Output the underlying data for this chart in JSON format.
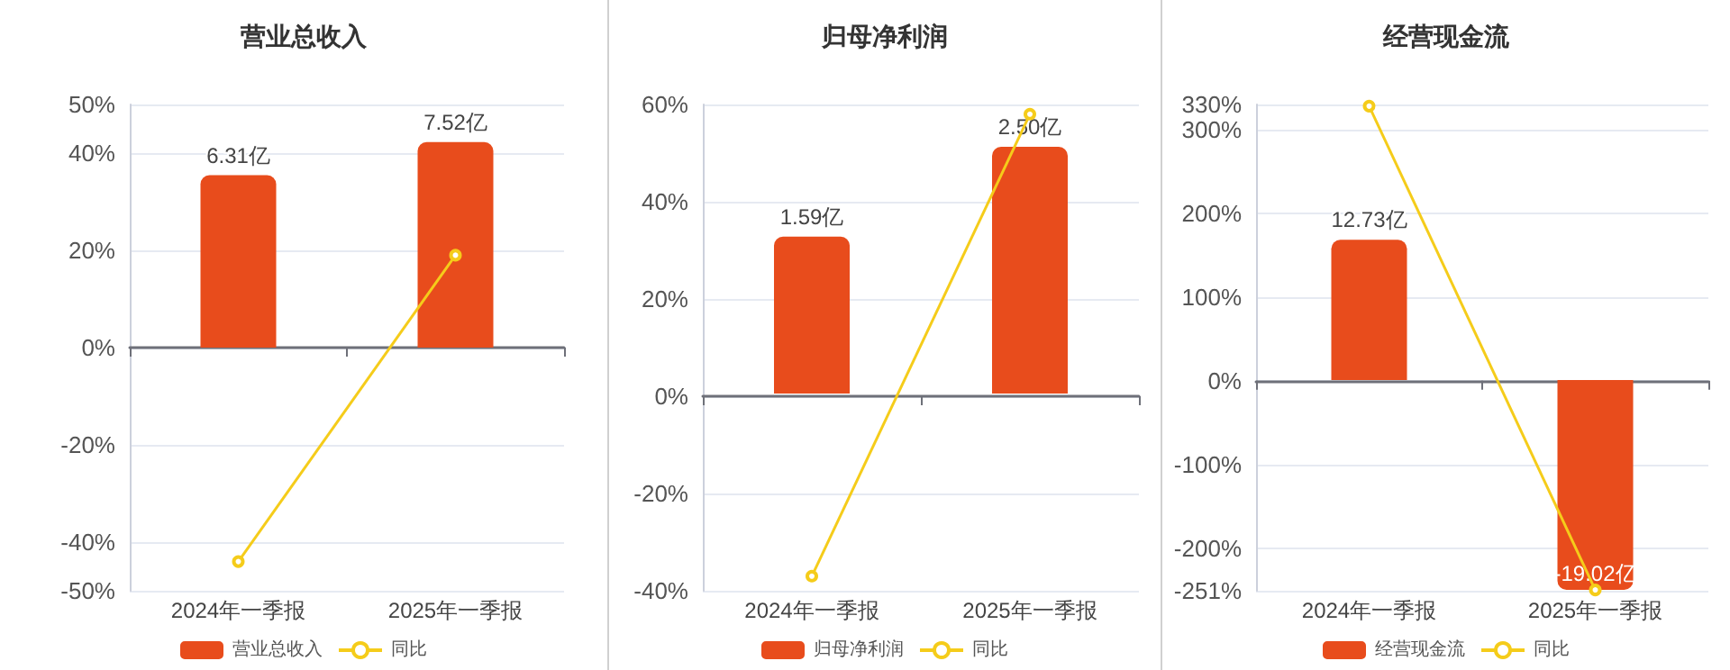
{
  "chart_data": [
    {
      "type": "bar",
      "title": "营业总收入",
      "categories": [
        "2024年一季报",
        "2025年一季报"
      ],
      "series": [
        {
          "name": "营业总收入",
          "axis": "y2",
          "color": "#e84c1c",
          "values": [
            6.31,
            7.52
          ],
          "value_labels": [
            "6.31亿",
            "7.52亿"
          ]
        },
        {
          "name": "同比",
          "type": "line",
          "axis": "y",
          "color": "#f5cc1a",
          "values": [
            -44,
            19
          ]
        }
      ],
      "ylim": [
        -50,
        50
      ],
      "yticks": [
        {
          "value": -50,
          "label": "-50%"
        },
        {
          "value": -40,
          "label": "-40%"
        },
        {
          "value": -20,
          "label": "-20%"
        },
        {
          "value": 0,
          "label": "0%"
        },
        {
          "value": 20,
          "label": "20%"
        },
        {
          "value": 40,
          "label": "40%"
        },
        {
          "value": 50,
          "label": "50%"
        }
      ],
      "y2lim": [
        -8.9,
        8.9
      ],
      "grid": "y",
      "legend": "bottom",
      "marker": "circle"
    },
    {
      "type": "bar",
      "title": "归母净利润",
      "categories": [
        "2024年一季报",
        "2025年一季报"
      ],
      "series": [
        {
          "name": "归母净利润",
          "axis": "y2",
          "color": "#e84c1c",
          "values": [
            1.59,
            2.5
          ],
          "value_labels": [
            "1.59亿",
            "2.50亿"
          ]
        },
        {
          "name": "同比",
          "type": "line",
          "axis": "y",
          "color": "#f5cc1a",
          "values": [
            -37,
            58
          ]
        }
      ],
      "ylim": [
        -40,
        60
      ],
      "yticks": [
        {
          "value": -40,
          "label": "-40%"
        },
        {
          "value": -20,
          "label": "-20%"
        },
        {
          "value": 0,
          "label": "0%"
        },
        {
          "value": 20,
          "label": "20%"
        },
        {
          "value": 40,
          "label": "40%"
        },
        {
          "value": 60,
          "label": "60%"
        }
      ],
      "y2lim": [
        -2.0,
        2.93
      ],
      "grid": "y",
      "legend": "bottom",
      "marker": "circle"
    },
    {
      "type": "bar",
      "title": "经营现金流",
      "categories": [
        "2024年一季报",
        "2025年一季报"
      ],
      "series": [
        {
          "name": "经营现金流",
          "axis": "y2",
          "color": "#e84c1c",
          "values": [
            12.73,
            -19.02
          ],
          "value_labels": [
            "12.73亿",
            "-19.02亿"
          ]
        },
        {
          "name": "同比",
          "type": "line",
          "axis": "y",
          "color": "#f5cc1a",
          "values": [
            328,
            -250
          ]
        }
      ],
      "ylim": [
        -251,
        330
      ],
      "yticks": [
        {
          "value": -251,
          "label": "-251%"
        },
        {
          "value": -200,
          "label": "-200%"
        },
        {
          "value": -100,
          "label": "-100%"
        },
        {
          "value": 0,
          "label": "0%"
        },
        {
          "value": 100,
          "label": "100%"
        },
        {
          "value": 200,
          "label": "200%"
        },
        {
          "value": 300,
          "label": "300%"
        },
        {
          "value": 330,
          "label": "330%"
        }
      ],
      "y2lim": [
        -19.1,
        25
      ],
      "grid": "y",
      "legend": "bottom",
      "marker": "circle"
    }
  ]
}
